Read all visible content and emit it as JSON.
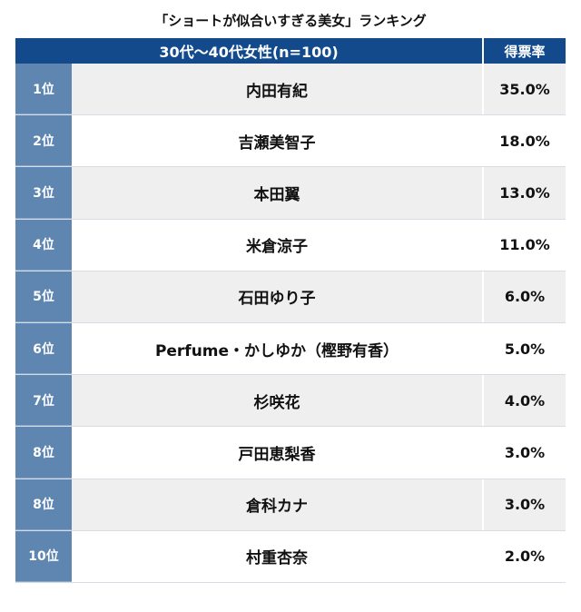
{
  "title": "「ショートが似合いすぎる美女」ランキング",
  "chart_data": {
    "type": "table",
    "group_header": "30代〜40代女性(n=100)",
    "value_header": "得票率",
    "rows": [
      {
        "rank": "1位",
        "name": "内田有紀",
        "value": "35.0%"
      },
      {
        "rank": "2位",
        "name": "吉瀬美智子",
        "value": "18.0%"
      },
      {
        "rank": "3位",
        "name": "本田翼",
        "value": "13.0%"
      },
      {
        "rank": "4位",
        "name": "米倉涼子",
        "value": "11.0%"
      },
      {
        "rank": "5位",
        "name": "石田ゆり子",
        "value": "6.0%"
      },
      {
        "rank": "6位",
        "name": "Perfume・かしゆか（樫野有香）",
        "value": "5.0%"
      },
      {
        "rank": "7位",
        "name": "杉咲花",
        "value": "4.0%"
      },
      {
        "rank": "8位",
        "name": "戸田恵梨香",
        "value": "3.0%"
      },
      {
        "rank": "8位",
        "name": "倉科カナ",
        "value": "3.0%"
      },
      {
        "rank": "10位",
        "name": "村重杏奈",
        "value": "2.0%"
      }
    ]
  },
  "colors": {
    "header_bg": "#124a8c",
    "rank_bg": "#5f86b0",
    "stripe_bg": "#efefef"
  }
}
